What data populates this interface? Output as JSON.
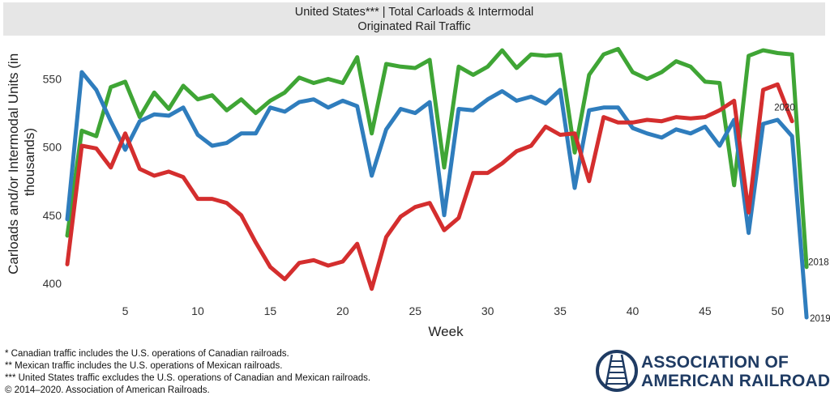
{
  "title": {
    "line1": "United States*** | Total Carloads & Intermodal",
    "line2": "Originated Rail Traffic"
  },
  "colors": {
    "2018": "#3fa535",
    "2019": "#2f7dbd",
    "2020": "#d42e2e",
    "logo": "#1f3b63"
  },
  "chart_data": {
    "type": "line",
    "xlabel": "Week",
    "ylabel": "Carloads and/or Intermodal Units (in thousands)",
    "xlim": [
      1,
      53
    ],
    "ylim": [
      375,
      580
    ],
    "xticks": [
      5,
      10,
      15,
      20,
      25,
      30,
      35,
      40,
      45,
      50
    ],
    "yticks": [
      400,
      450,
      500,
      550
    ],
    "grid": false,
    "series": [
      {
        "name": "2018",
        "x": [
          1,
          2,
          3,
          4,
          5,
          6,
          7,
          8,
          9,
          10,
          11,
          12,
          13,
          14,
          15,
          16,
          17,
          18,
          19,
          20,
          21,
          22,
          23,
          24,
          25,
          26,
          27,
          28,
          29,
          30,
          31,
          32,
          33,
          34,
          35,
          36,
          37,
          38,
          39,
          40,
          41,
          42,
          43,
          44,
          45,
          46,
          47,
          48,
          49,
          50,
          51,
          52
        ],
        "values": [
          435,
          512,
          508,
          544,
          548,
          522,
          540,
          528,
          545,
          535,
          538,
          527,
          535,
          525,
          534,
          540,
          551,
          547,
          550,
          547,
          566,
          510,
          561,
          559,
          558,
          564,
          485,
          559,
          553,
          559,
          571,
          558,
          568,
          567,
          568,
          496,
          553,
          568,
          572,
          555,
          550,
          555,
          563,
          559,
          548,
          547,
          472,
          567,
          571,
          569,
          568,
          412
        ]
      },
      {
        "name": "2019",
        "x": [
          1,
          2,
          3,
          4,
          5,
          6,
          7,
          8,
          9,
          10,
          11,
          12,
          13,
          14,
          15,
          16,
          17,
          18,
          19,
          20,
          21,
          22,
          23,
          24,
          25,
          26,
          27,
          28,
          29,
          30,
          31,
          32,
          33,
          34,
          35,
          36,
          37,
          38,
          39,
          40,
          41,
          42,
          43,
          44,
          45,
          46,
          47,
          48,
          49,
          50,
          51,
          52
        ],
        "values": [
          447,
          555,
          542,
          519,
          498,
          519,
          524,
          523,
          529,
          509,
          501,
          503,
          510,
          510,
          529,
          526,
          533,
          535,
          529,
          534,
          530,
          479,
          513,
          528,
          525,
          533,
          450,
          528,
          527,
          535,
          541,
          534,
          537,
          532,
          542,
          470,
          527,
          529,
          529,
          514,
          510,
          507,
          513,
          510,
          515,
          501,
          520,
          437,
          517,
          520,
          508,
          375
        ]
      },
      {
        "name": "2020",
        "x": [
          1,
          2,
          3,
          4,
          5,
          6,
          7,
          8,
          9,
          10,
          11,
          12,
          13,
          14,
          15,
          16,
          17,
          18,
          19,
          20,
          21,
          22,
          23,
          24,
          25,
          26,
          27,
          28,
          29,
          30,
          31,
          32,
          33,
          34,
          35,
          36,
          37,
          38,
          39,
          40,
          41,
          42,
          43,
          44,
          45,
          46,
          47,
          48,
          49,
          50,
          51
        ],
        "values": [
          414,
          501,
          499,
          485,
          510,
          484,
          479,
          482,
          478,
          462,
          462,
          459,
          450,
          430,
          412,
          403,
          415,
          417,
          413,
          416,
          429,
          396,
          434,
          449,
          456,
          459,
          439,
          448,
          481,
          481,
          488,
          497,
          501,
          515,
          509,
          510,
          475,
          522,
          518,
          518,
          520,
          519,
          522,
          521,
          522,
          527,
          534,
          452,
          542,
          546,
          519
        ]
      }
    ],
    "line_labels": [
      "2018",
      "2019",
      "2020"
    ]
  },
  "footnotes": [
    "* Canadian traffic includes the U.S. operations of Canadian railroads.",
    "** Mexican traffic includes the U.S. operations of Mexican railroads.",
    "*** United States traffic excludes the U.S. operations of Canadian and Mexican railroads.",
    "© 2014–2020. Association of American Railroads."
  ],
  "logo": {
    "line1": "ASSOCIATION OF",
    "line2": "AMERICAN RAILROADS"
  }
}
